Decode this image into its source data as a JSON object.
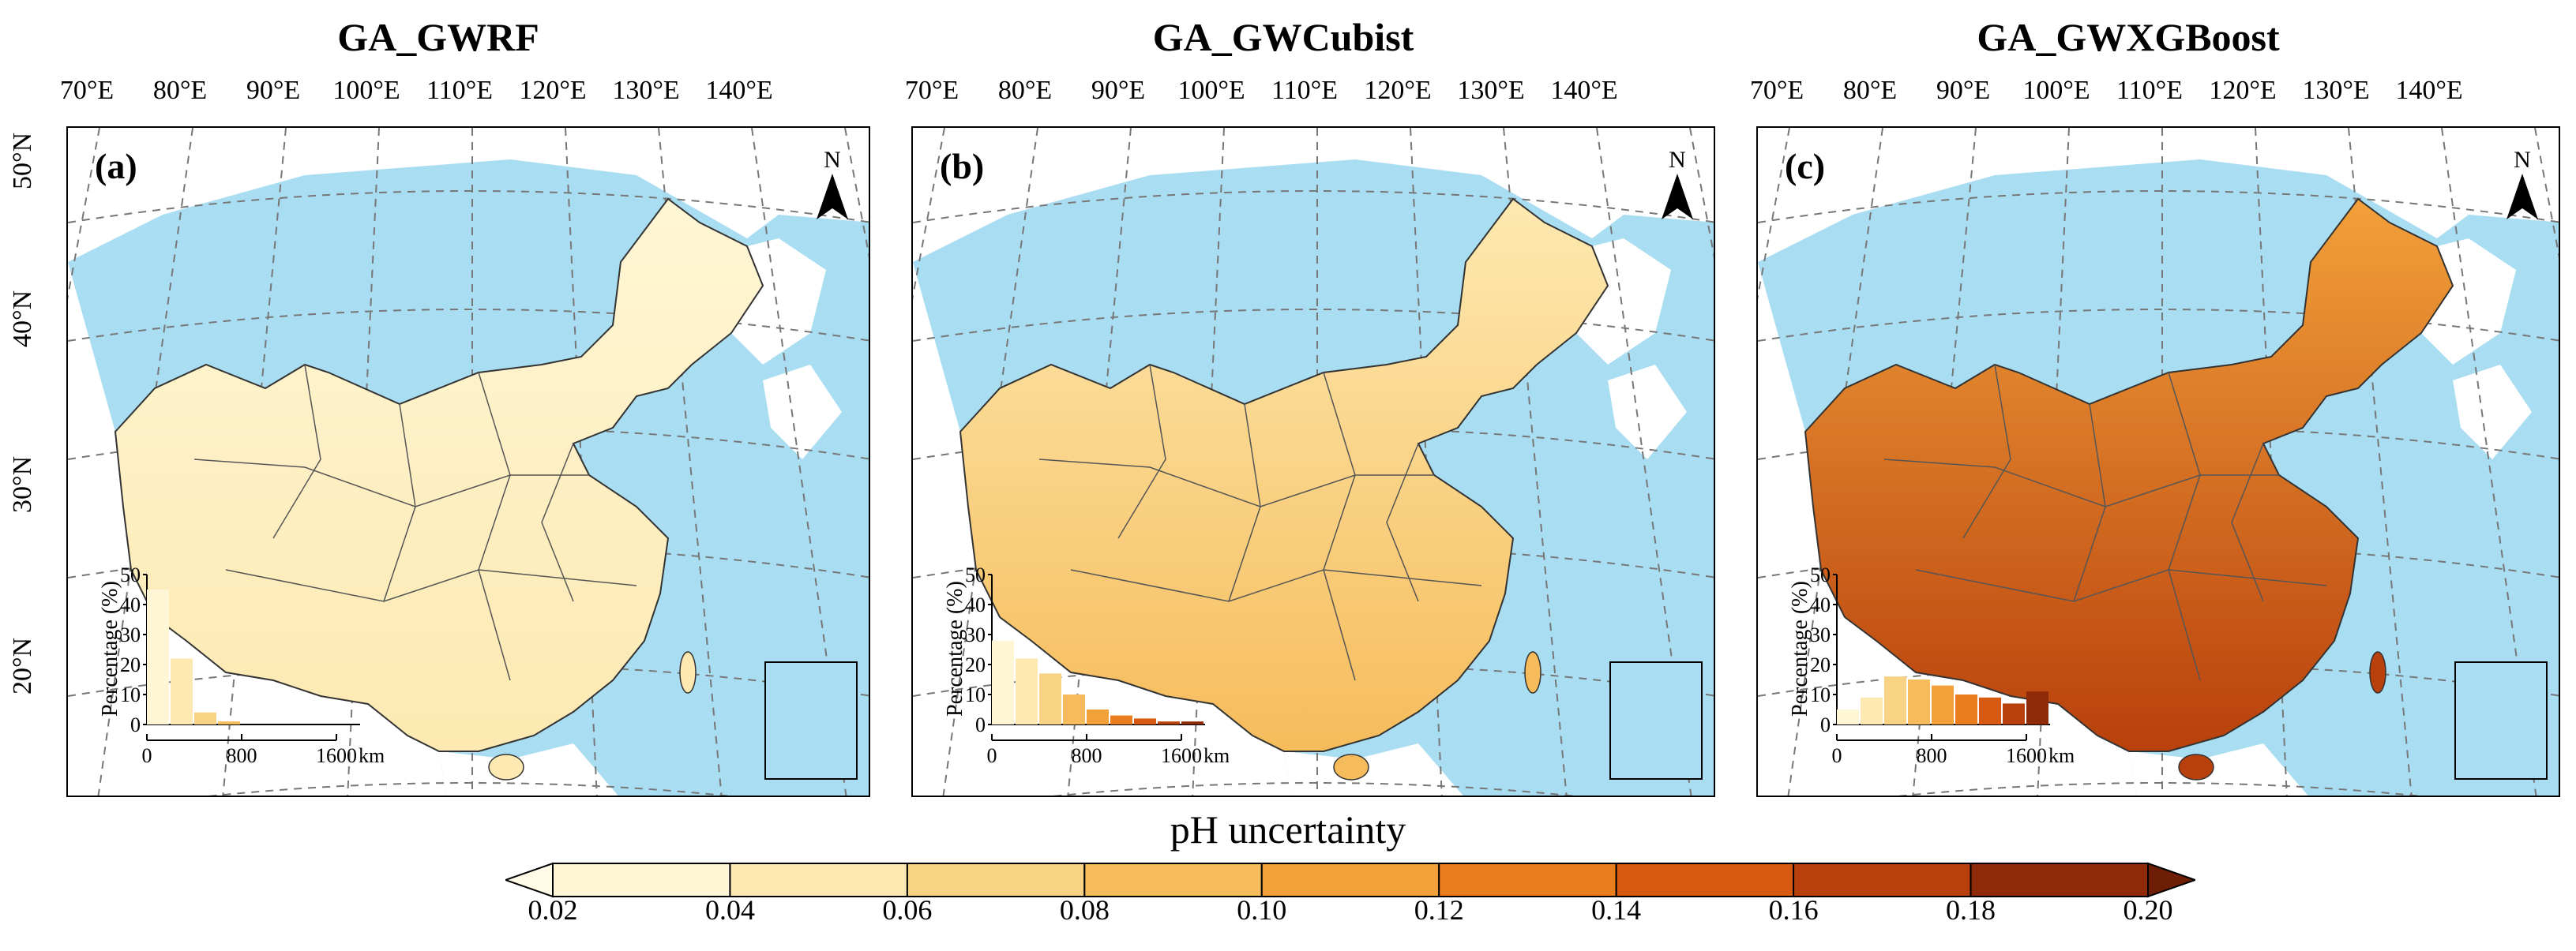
{
  "figure": {
    "panels": [
      {
        "title": "GA_GWRF",
        "label": "(a)"
      },
      {
        "title": "GA_GWCubist",
        "label": "(b)"
      },
      {
        "title": "GA_GWXGBoost",
        "label": "(c)"
      }
    ],
    "lon_ticks": [
      "70°E",
      "80°E",
      "90°E",
      "100°E",
      "110°E",
      "120°E",
      "130°E",
      "140°E"
    ],
    "lat_ticks": [
      "50°N",
      "40°N",
      "30°N",
      "20°N"
    ],
    "north_label": "N",
    "scale_bar": {
      "ticks": [
        "0",
        "800",
        "1600"
      ],
      "unit": "km"
    },
    "colorbar": {
      "title": "pH uncertainty",
      "ticks": [
        "0.02",
        "0.04",
        "0.06",
        "0.08",
        "0.10",
        "0.12",
        "0.14",
        "0.16",
        "0.18",
        "0.20"
      ],
      "colors": [
        "#fff6d5",
        "#fde9b1",
        "#f9d384",
        "#f6bc5b",
        "#f2a03a",
        "#ea7e1f",
        "#d85a10",
        "#b8400c",
        "#8e2a07"
      ],
      "low_color": "#fffbe6",
      "high_color": "#6e1e05"
    }
  },
  "chart_data": [
    {
      "type": "bar",
      "title": "GA_GWRF",
      "panel": "(a)",
      "ylabel": "Percentage (%)",
      "xlabel": "",
      "ylim": [
        0,
        50
      ],
      "yticks": [
        "0",
        "10",
        "20",
        "30",
        "40",
        "50"
      ],
      "categories": [
        "0.02-0.04",
        "0.04-0.06",
        "0.06-0.08",
        "0.08-0.10",
        "0.10-0.12",
        "0.12-0.14",
        "0.14-0.16",
        "0.16-0.18",
        "0.18-0.20"
      ],
      "values": [
        45,
        22,
        4,
        1,
        0,
        0,
        0,
        0,
        0
      ]
    },
    {
      "type": "bar",
      "title": "GA_GWCubist",
      "panel": "(b)",
      "ylabel": "Percentage (%)",
      "xlabel": "",
      "ylim": [
        0,
        50
      ],
      "yticks": [
        "0",
        "10",
        "20",
        "30",
        "40",
        "50"
      ],
      "categories": [
        "0.02-0.04",
        "0.04-0.06",
        "0.06-0.08",
        "0.08-0.10",
        "0.10-0.12",
        "0.12-0.14",
        "0.14-0.16",
        "0.16-0.18",
        "0.18-0.20"
      ],
      "values": [
        28,
        22,
        17,
        10,
        5,
        3,
        2,
        1,
        1
      ]
    },
    {
      "type": "bar",
      "title": "GA_GWXGBoost",
      "panel": "(c)",
      "ylabel": "Percentage (%)",
      "xlabel": "",
      "ylim": [
        0,
        50
      ],
      "yticks": [
        "0",
        "10",
        "20",
        "30",
        "40",
        "50"
      ],
      "categories": [
        "0.02-0.04",
        "0.04-0.06",
        "0.06-0.08",
        "0.08-0.10",
        "0.10-0.12",
        "0.12-0.14",
        "0.14-0.16",
        "0.16-0.18",
        "0.18-0.20"
      ],
      "values": [
        5,
        9,
        16,
        15,
        13,
        10,
        9,
        7,
        11
      ]
    }
  ]
}
